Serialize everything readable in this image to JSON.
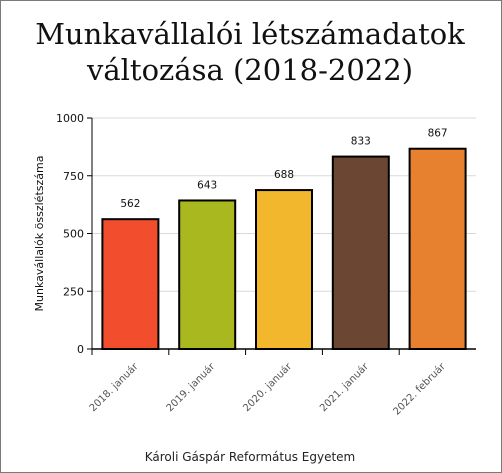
{
  "chart_data": {
    "type": "bar",
    "title_lines": [
      "Munkavállalói létszámadatok",
      "változása (2018-2022)"
    ],
    "ylabel": "Munkavállalók összlétszáma",
    "xlabel": "",
    "categories": [
      "2018. január",
      "2019. január",
      "2020. január",
      "2021. január",
      "2022. február"
    ],
    "values": [
      562,
      643,
      688,
      833,
      867
    ],
    "colors": [
      "#f24e2e",
      "#a9b81e",
      "#f2b72c",
      "#6b4632",
      "#e8812f"
    ],
    "ylim": [
      0,
      1000
    ],
    "yticks": [
      0,
      250,
      500,
      750,
      1000
    ],
    "grid": true,
    "legend": "none"
  },
  "footer": {
    "source": "Károli Gáspár Református Egyetem"
  }
}
